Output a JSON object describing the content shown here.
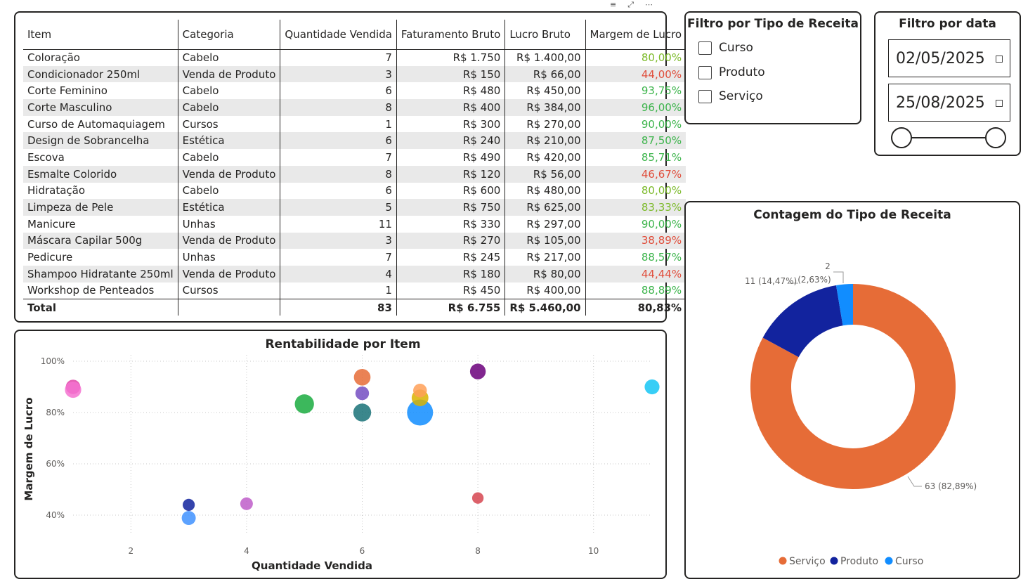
{
  "table": {
    "headers": [
      "Item",
      "Categoria",
      "Quantidade Vendida",
      "Faturamento Bruto",
      "Lucro Bruto",
      "Margem de Lucro"
    ],
    "rows": [
      {
        "item": "Coloração",
        "categoria": "Cabelo",
        "qtd": "7",
        "fat": "R$ 1.750",
        "lucro": "R$ 1.400,00",
        "margem": "80,00%",
        "color": "#7cba2a"
      },
      {
        "item": "Condicionador 250ml",
        "categoria": "Venda de Produto",
        "qtd": "3",
        "fat": "R$ 150",
        "lucro": "R$ 66,00",
        "margem": "44,00%",
        "color": "#e04d3a"
      },
      {
        "item": "Corte Feminino",
        "categoria": "Cabelo",
        "qtd": "6",
        "fat": "R$ 480",
        "lucro": "R$ 450,00",
        "margem": "93,75%",
        "color": "#3cb44b"
      },
      {
        "item": "Corte Masculino",
        "categoria": "Cabelo",
        "qtd": "8",
        "fat": "R$ 400",
        "lucro": "R$ 384,00",
        "margem": "96,00%",
        "color": "#3cb44b"
      },
      {
        "item": "Curso de Automaquiagem",
        "categoria": "Cursos",
        "qtd": "1",
        "fat": "R$ 300",
        "lucro": "R$ 270,00",
        "margem": "90,00%",
        "color": "#3cb44b"
      },
      {
        "item": "Design de Sobrancelha",
        "categoria": "Estética",
        "qtd": "6",
        "fat": "R$ 240",
        "lucro": "R$ 210,00",
        "margem": "87,50%",
        "color": "#3cb44b"
      },
      {
        "item": "Escova",
        "categoria": "Cabelo",
        "qtd": "7",
        "fat": "R$ 490",
        "lucro": "R$ 420,00",
        "margem": "85,71%",
        "color": "#3cb44b"
      },
      {
        "item": "Esmalte Colorido",
        "categoria": "Venda de Produto",
        "qtd": "8",
        "fat": "R$ 120",
        "lucro": "R$ 56,00",
        "margem": "46,67%",
        "color": "#e04d3a"
      },
      {
        "item": "Hidratação",
        "categoria": "Cabelo",
        "qtd": "6",
        "fat": "R$ 600",
        "lucro": "R$ 480,00",
        "margem": "80,00%",
        "color": "#7cba2a"
      },
      {
        "item": "Limpeza de Pele",
        "categoria": "Estética",
        "qtd": "5",
        "fat": "R$ 750",
        "lucro": "R$ 625,00",
        "margem": "83,33%",
        "color": "#7cba2a"
      },
      {
        "item": "Manicure",
        "categoria": "Unhas",
        "qtd": "11",
        "fat": "R$ 330",
        "lucro": "R$ 297,00",
        "margem": "90,00%",
        "color": "#3cb44b"
      },
      {
        "item": "Máscara Capilar 500g",
        "categoria": "Venda de Produto",
        "qtd": "3",
        "fat": "R$ 270",
        "lucro": "R$ 105,00",
        "margem": "38,89%",
        "color": "#e04d3a"
      },
      {
        "item": "Pedicure",
        "categoria": "Unhas",
        "qtd": "7",
        "fat": "R$ 245",
        "lucro": "R$ 217,00",
        "margem": "88,57%",
        "color": "#3cb44b"
      },
      {
        "item": "Shampoo Hidratante 250ml",
        "categoria": "Venda de Produto",
        "qtd": "4",
        "fat": "R$ 180",
        "lucro": "R$ 80,00",
        "margem": "44,44%",
        "color": "#e04d3a"
      },
      {
        "item": "Workshop de Penteados",
        "categoria": "Cursos",
        "qtd": "1",
        "fat": "R$ 450",
        "lucro": "R$ 400,00",
        "margem": "88,89%",
        "color": "#3cb44b"
      }
    ],
    "total": {
      "label": "Total",
      "qtd": "83",
      "fat": "R$ 6.755",
      "lucro": "R$ 5.460,00",
      "margem": "80,83%"
    }
  },
  "filter_type": {
    "title": "Filtro por Tipo de Receita",
    "options": [
      "Curso",
      "Produto",
      "Serviço"
    ]
  },
  "filter_date": {
    "title": "Filtro por data",
    "start": "02/05/2025",
    "end": "25/08/2025"
  },
  "scatter": {
    "title": "Rentabilidade por Item",
    "xlabel": "Quantidade Vendida",
    "ylabel": "Margem de Lucro",
    "xticks": [
      "2",
      "4",
      "6",
      "8",
      "10"
    ],
    "yticks": [
      "40%",
      "60%",
      "80%",
      "100%"
    ],
    "xlim": [
      1,
      11
    ],
    "ylim": [
      35,
      100
    ]
  },
  "chart_data": [
    {
      "type": "scatter",
      "title": "Rentabilidade por Item",
      "xlabel": "Quantidade Vendida",
      "ylabel": "Margem de Lucro",
      "points": [
        {
          "x": 7,
          "y": 80.0,
          "size": 1750,
          "color": "#118DFF"
        },
        {
          "x": 3,
          "y": 44.0,
          "size": 150,
          "color": "#12239E"
        },
        {
          "x": 6,
          "y": 93.75,
          "size": 480,
          "color": "#E66C37"
        },
        {
          "x": 8,
          "y": 96.0,
          "size": 400,
          "color": "#6B007B"
        },
        {
          "x": 1,
          "y": 90.0,
          "size": 300,
          "color": "#E044A7"
        },
        {
          "x": 6,
          "y": 87.5,
          "size": 240,
          "color": "#744EC2"
        },
        {
          "x": 7,
          "y": 85.71,
          "size": 490,
          "color": "#D9B300"
        },
        {
          "x": 8,
          "y": 46.67,
          "size": 120,
          "color": "#D64550"
        },
        {
          "x": 6,
          "y": 80.0,
          "size": 600,
          "color": "#197278"
        },
        {
          "x": 5,
          "y": 83.33,
          "size": 750,
          "color": "#1AAB40"
        },
        {
          "x": 11,
          "y": 90.0,
          "size": 330,
          "color": "#15C6F4"
        },
        {
          "x": 3,
          "y": 38.89,
          "size": 270,
          "color": "#4092FF"
        },
        {
          "x": 7,
          "y": 88.57,
          "size": 245,
          "color": "#FFA058"
        },
        {
          "x": 4,
          "y": 44.44,
          "size": 180,
          "color": "#BE5DC9"
        },
        {
          "x": 1,
          "y": 88.89,
          "size": 450,
          "color": "#F472D0"
        }
      ]
    },
    {
      "type": "pie",
      "title": "Contagem do Tipo de Receita",
      "slices": [
        {
          "name": "Serviço",
          "value": 63,
          "label": "63 (82,89%)",
          "color": "#E66C37"
        },
        {
          "name": "Produto",
          "value": 11,
          "label": "11 (14,47%)",
          "color": "#12239E"
        },
        {
          "name": "Curso",
          "value": 2,
          "label": "2",
          "label2": "(2,63%)",
          "color": "#118DFF"
        }
      ],
      "legend": [
        "Serviço",
        "Produto",
        "Curso"
      ]
    }
  ]
}
